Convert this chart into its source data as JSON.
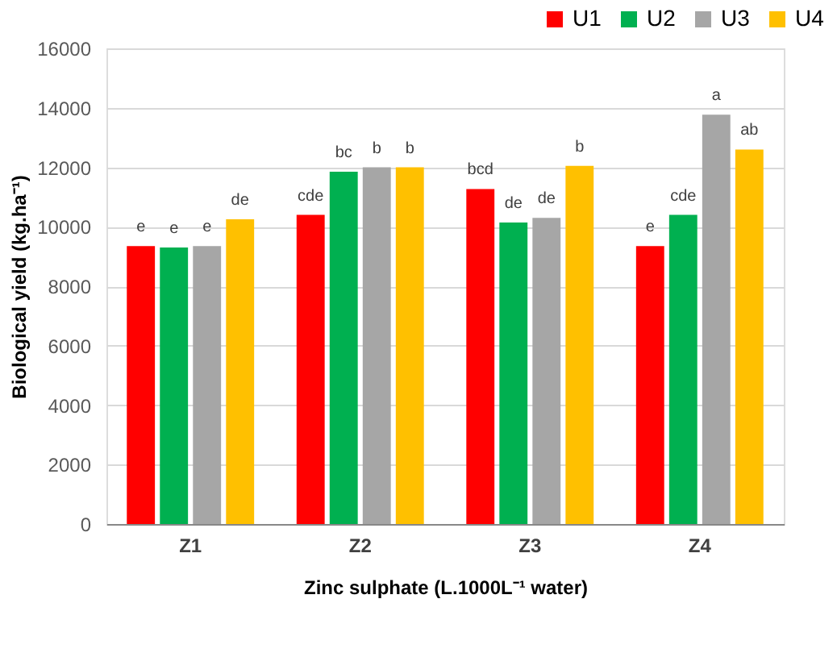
{
  "chart_data": {
    "type": "bar",
    "xlabel": "Zinc sulphate (L.1000L⁻¹ water)",
    "ylabel": "Biological yield (kg.ha⁻¹)",
    "categories": [
      "Z1",
      "Z2",
      "Z3",
      "Z4"
    ],
    "series": [
      {
        "name": "U1",
        "color": "#ff0000",
        "values": [
          9350,
          10400,
          11270,
          9350
        ],
        "value_labels": [
          "e",
          "cde",
          "bcd",
          "e"
        ]
      },
      {
        "name": "U2",
        "color": "#00b050",
        "values": [
          9300,
          11850,
          10140,
          10400
        ],
        "value_labels": [
          "e",
          "bc",
          "de",
          "cde"
        ]
      },
      {
        "name": "U3",
        "color": "#a6a6a6",
        "values": [
          9350,
          12000,
          10300,
          13770
        ],
        "value_labels": [
          "e",
          "b",
          "de",
          "a"
        ]
      },
      {
        "name": "U4",
        "color": "#ffc000",
        "values": [
          10250,
          12000,
          12050,
          12600
        ],
        "value_labels": [
          "de",
          "b",
          "b",
          "ab"
        ]
      }
    ],
    "ylim": [
      0,
      16000
    ],
    "yticks": [
      0,
      2000,
      4000,
      6000,
      8000,
      10000,
      12000,
      14000,
      16000
    ],
    "grid": "y",
    "legend": "top right"
  }
}
